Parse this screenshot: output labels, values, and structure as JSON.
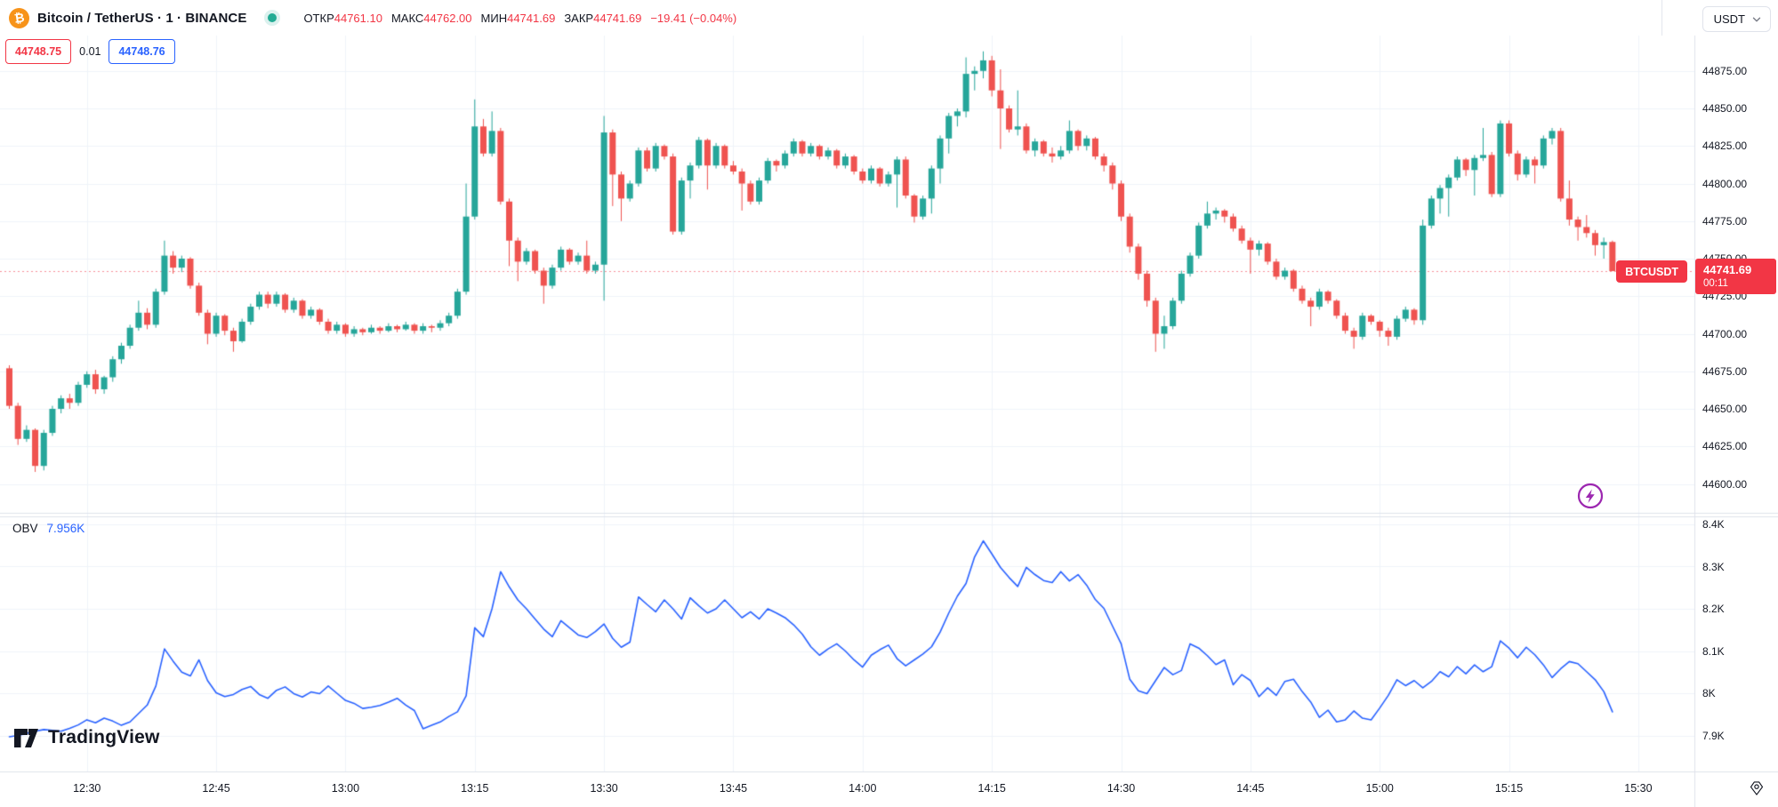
{
  "header": {
    "symbol_title": "Bitcoin / TetherUS · 1 · BINANCE",
    "market_status": "open",
    "ohlc": {
      "open_label": "ОТКР",
      "open": "44761.10",
      "high_label": "МАКС",
      "high": "44762.00",
      "low_label": "МИН",
      "low": "44741.69",
      "close_label": "ЗАКР",
      "close": "44741.69",
      "change": "−19.41 (−0.04%)"
    },
    "currency": "USDT"
  },
  "trade_panel": {
    "sell_price": "44748.75",
    "spread": "0.01",
    "buy_price": "44748.76"
  },
  "price_label": {
    "symbol": "BTCUSDT",
    "price": "44741.69",
    "countdown": "00:11"
  },
  "indicator": {
    "name": "OBV",
    "value": "7.956K"
  },
  "watermark": "TradingView",
  "icons": {
    "bitcoin_glyph": "₿"
  },
  "colors": {
    "up": "#26a69a",
    "down": "#ef5350",
    "accent_red": "#f23645",
    "accent_blue": "#2962ff",
    "obv_line": "#2962ff",
    "bitcoin_orange": "#f7931a",
    "lightning_purple": "#9c27b0",
    "grid": "#f0f3fa",
    "axis_border": "#e0e3eb",
    "text": "#131722",
    "price_line": "rgba(242,54,69,0.55)"
  },
  "chart_data": {
    "type": "candlestick",
    "title": "Bitcoin / TetherUS 1m BINANCE with OBV",
    "legend_position": "top-left",
    "grid": true,
    "last_price": 44741.69,
    "price_axis": {
      "min": 44600,
      "max": 44900,
      "ticks": [
        44875,
        44850,
        44825,
        44800,
        44775,
        44750,
        44725,
        44700,
        44675,
        44650,
        44625,
        44600
      ]
    },
    "time_axis": {
      "labels": [
        "12:30",
        "12:45",
        "13:00",
        "13:15",
        "13:30",
        "13:45",
        "14:00",
        "14:15",
        "14:30",
        "14:45",
        "15:00",
        "15:15",
        "15:30"
      ],
      "first_label_candle_index": 9,
      "candles_per_label": 15
    },
    "candles": [
      [
        44677,
        44679,
        44650,
        44652
      ],
      [
        44652,
        44654,
        44626,
        44630
      ],
      [
        44630,
        44639,
        44628,
        44636
      ],
      [
        44636,
        44637,
        44608,
        44612
      ],
      [
        44612,
        44636,
        44609,
        44634
      ],
      [
        44634,
        44652,
        44632,
        44650
      ],
      [
        44650,
        44659,
        44647,
        44657
      ],
      [
        44657,
        44660,
        44650,
        44654
      ],
      [
        44654,
        44668,
        44652,
        44666
      ],
      [
        44666,
        44675,
        44664,
        44673
      ],
      [
        44673,
        44676,
        44660,
        44663
      ],
      [
        44663,
        44672,
        44660,
        44671
      ],
      [
        44671,
        44685,
        44668,
        44683
      ],
      [
        44683,
        44694,
        44680,
        44692
      ],
      [
        44692,
        44706,
        44690,
        44704
      ],
      [
        44704,
        44722,
        44702,
        44714
      ],
      [
        44714,
        44717,
        44703,
        44706
      ],
      [
        44706,
        44730,
        44704,
        44728
      ],
      [
        44728,
        44762,
        44726,
        44752
      ],
      [
        44752,
        44755,
        44740,
        44744
      ],
      [
        44744,
        44752,
        44741,
        44750
      ],
      [
        44750,
        44751,
        44730,
        44732
      ],
      [
        44732,
        44734,
        44712,
        44714
      ],
      [
        44714,
        44716,
        44693,
        44700
      ],
      [
        44700,
        44714,
        44698,
        44712
      ],
      [
        44712,
        44713,
        44699,
        44702
      ],
      [
        44702,
        44704,
        44688,
        44695
      ],
      [
        44695,
        44710,
        44694,
        44708
      ],
      [
        44708,
        44720,
        44706,
        44718
      ],
      [
        44718,
        44728,
        44716,
        44726
      ],
      [
        44726,
        44728,
        44717,
        44720
      ],
      [
        44720,
        44728,
        44718,
        44726
      ],
      [
        44726,
        44727,
        44714,
        44716
      ],
      [
        44716,
        44724,
        44714,
        44722
      ],
      [
        44722,
        44723,
        44710,
        44712
      ],
      [
        44712,
        44718,
        44710,
        44716
      ],
      [
        44716,
        44717,
        44706,
        44708
      ],
      [
        44708,
        44710,
        44700,
        44702
      ],
      [
        44702,
        44708,
        44700,
        44706
      ],
      [
        44706,
        44707,
        44698,
        44700
      ],
      [
        44700,
        44705,
        44698,
        44703
      ],
      [
        44703,
        44704,
        44699,
        44701
      ],
      [
        44701,
        44706,
        44700,
        44704
      ],
      [
        44704,
        44705,
        44700,
        44702
      ],
      [
        44702,
        44707,
        44701,
        44705
      ],
      [
        44705,
        44706,
        44701,
        44703
      ],
      [
        44703,
        44708,
        44702,
        44706
      ],
      [
        44706,
        44707,
        44700,
        44702
      ],
      [
        44702,
        44707,
        44700,
        44705
      ],
      [
        44705,
        44706,
        44701,
        44704
      ],
      [
        44704,
        44709,
        44702,
        44707
      ],
      [
        44707,
        44714,
        44705,
        44712
      ],
      [
        44712,
        44730,
        44710,
        44728
      ],
      [
        44728,
        44800,
        44726,
        44778
      ],
      [
        44778,
        44856,
        44776,
        44838
      ],
      [
        44838,
        44843,
        44818,
        44820
      ],
      [
        44820,
        44848,
        44818,
        44835
      ],
      [
        44835,
        44837,
        44786,
        44788
      ],
      [
        44788,
        44790,
        44745,
        44762
      ],
      [
        44762,
        44764,
        44735,
        44748
      ],
      [
        44748,
        44757,
        44746,
        44755
      ],
      [
        44755,
        44756,
        44740,
        44742
      ],
      [
        44742,
        44744,
        44720,
        44732
      ],
      [
        44732,
        44746,
        44730,
        44744
      ],
      [
        44744,
        44758,
        44742,
        44756
      ],
      [
        44756,
        44757,
        44746,
        44748
      ],
      [
        44748,
        44754,
        44746,
        44752
      ],
      [
        44752,
        44762,
        44740,
        44742
      ],
      [
        44742,
        44748,
        44740,
        44746
      ],
      [
        44746,
        44845,
        44722,
        44834
      ],
      [
        44834,
        44836,
        44785,
        44806
      ],
      [
        44806,
        44808,
        44775,
        44790
      ],
      [
        44790,
        44802,
        44788,
        44800
      ],
      [
        44800,
        44824,
        44798,
        44822
      ],
      [
        44822,
        44824,
        44808,
        44810
      ],
      [
        44810,
        44827,
        44808,
        44825
      ],
      [
        44825,
        44826,
        44816,
        44818
      ],
      [
        44818,
        44820,
        44766,
        44768
      ],
      [
        44768,
        44804,
        44766,
        44802
      ],
      [
        44802,
        44814,
        44790,
        44812
      ],
      [
        44812,
        44831,
        44810,
        44829
      ],
      [
        44829,
        44830,
        44796,
        44812
      ],
      [
        44812,
        44827,
        44810,
        44825
      ],
      [
        44825,
        44826,
        44810,
        44812
      ],
      [
        44812,
        44815,
        44806,
        44808
      ],
      [
        44808,
        44810,
        44782,
        44800
      ],
      [
        44800,
        44802,
        44786,
        44788
      ],
      [
        44788,
        44804,
        44786,
        44802
      ],
      [
        44802,
        44817,
        44800,
        44815
      ],
      [
        44815,
        44816,
        44808,
        44812
      ],
      [
        44812,
        44822,
        44810,
        44820
      ],
      [
        44820,
        44830,
        44818,
        44828
      ],
      [
        44828,
        44829,
        44818,
        44820
      ],
      [
        44820,
        44827,
        44818,
        44825
      ],
      [
        44825,
        44826,
        44816,
        44818
      ],
      [
        44818,
        44824,
        44816,
        44822
      ],
      [
        44822,
        44823,
        44810,
        44812
      ],
      [
        44812,
        44820,
        44810,
        44818
      ],
      [
        44818,
        44819,
        44806,
        44808
      ],
      [
        44808,
        44810,
        44800,
        44802
      ],
      [
        44802,
        44812,
        44800,
        44810
      ],
      [
        44810,
        44811,
        44798,
        44800
      ],
      [
        44800,
        44808,
        44798,
        44806
      ],
      [
        44806,
        44818,
        44784,
        44816
      ],
      [
        44816,
        44818,
        44790,
        44792
      ],
      [
        44792,
        44793,
        44774,
        44778
      ],
      [
        44778,
        44792,
        44776,
        44790
      ],
      [
        44790,
        44812,
        44780,
        44810
      ],
      [
        44810,
        44832,
        44800,
        44830
      ],
      [
        44830,
        44847,
        44820,
        44845
      ],
      [
        44845,
        44850,
        44838,
        44848
      ],
      [
        44848,
        44884,
        44844,
        44873
      ],
      [
        44873,
        44878,
        44862,
        44875
      ],
      [
        44875,
        44888,
        44870,
        44882
      ],
      [
        44882,
        44885,
        44858,
        44862
      ],
      [
        44862,
        44876,
        44823,
        44850
      ],
      [
        44850,
        44852,
        44834,
        44836
      ],
      [
        44836,
        44862,
        44832,
        44838
      ],
      [
        44838,
        44840,
        44820,
        44822
      ],
      [
        44822,
        44830,
        44818,
        44828
      ],
      [
        44828,
        44829,
        44818,
        44820
      ],
      [
        44820,
        44824,
        44814,
        44818
      ],
      [
        44818,
        44825,
        44816,
        44822
      ],
      [
        44822,
        44842,
        44820,
        44835
      ],
      [
        44835,
        44836,
        44822,
        44825
      ],
      [
        44825,
        44832,
        44822,
        44830
      ],
      [
        44830,
        44831,
        44816,
        44818
      ],
      [
        44818,
        44820,
        44808,
        44812
      ],
      [
        44812,
        44814,
        44796,
        44800
      ],
      [
        44800,
        44802,
        44775,
        44778
      ],
      [
        44778,
        44780,
        44754,
        44758
      ],
      [
        44758,
        44760,
        44736,
        44740
      ],
      [
        44740,
        44742,
        44718,
        44722
      ],
      [
        44722,
        44724,
        44688,
        44700
      ],
      [
        44700,
        44712,
        44690,
        44705
      ],
      [
        44705,
        44724,
        44703,
        44722
      ],
      [
        44722,
        44742,
        44720,
        44740
      ],
      [
        44740,
        44754,
        44738,
        44752
      ],
      [
        44752,
        44774,
        44750,
        44772
      ],
      [
        44772,
        44788,
        44770,
        44780
      ],
      [
        44780,
        44784,
        44776,
        44782
      ],
      [
        44782,
        44783,
        44774,
        44778
      ],
      [
        44778,
        44780,
        44768,
        44770
      ],
      [
        44770,
        44772,
        44760,
        44762
      ],
      [
        44762,
        44764,
        44740,
        44756
      ],
      [
        44756,
        44762,
        44752,
        44760
      ],
      [
        44760,
        44761,
        44746,
        44748
      ],
      [
        44748,
        44750,
        44736,
        44738
      ],
      [
        44738,
        44744,
        44736,
        44742
      ],
      [
        44742,
        44743,
        44728,
        44730
      ],
      [
        44730,
        44732,
        44720,
        44722
      ],
      [
        44722,
        44724,
        44705,
        44718
      ],
      [
        44718,
        44730,
        44716,
        44728
      ],
      [
        44728,
        44729,
        44720,
        44722
      ],
      [
        44722,
        44723,
        44710,
        44712
      ],
      [
        44712,
        44714,
        44700,
        44702
      ],
      [
        44702,
        44704,
        44690,
        44698
      ],
      [
        44698,
        44714,
        44696,
        44712
      ],
      [
        44712,
        44713,
        44706,
        44708
      ],
      [
        44708,
        44709,
        44698,
        44702
      ],
      [
        44702,
        44704,
        44692,
        44698
      ],
      [
        44698,
        44712,
        44696,
        44710
      ],
      [
        44710,
        44718,
        44708,
        44716
      ],
      [
        44716,
        44717,
        44706,
        44709
      ],
      [
        44709,
        44776,
        44706,
        44772
      ],
      [
        44772,
        44792,
        44770,
        44790
      ],
      [
        44790,
        44799,
        44780,
        44797
      ],
      [
        44797,
        44806,
        44778,
        44804
      ],
      [
        44804,
        44818,
        44802,
        44816
      ],
      [
        44816,
        44817,
        44805,
        44809
      ],
      [
        44809,
        44819,
        44792,
        44817
      ],
      [
        44817,
        44837,
        44815,
        44819
      ],
      [
        44819,
        44821,
        44791,
        44793
      ],
      [
        44793,
        44842,
        44791,
        44840
      ],
      [
        44840,
        44842,
        44818,
        44820
      ],
      [
        44820,
        44822,
        44802,
        44806
      ],
      [
        44806,
        44818,
        44804,
        44816
      ],
      [
        44816,
        44818,
        44800,
        44812
      ],
      [
        44812,
        44832,
        44810,
        44830
      ],
      [
        44830,
        44837,
        44826,
        44835
      ],
      [
        44835,
        44837,
        44788,
        44790
      ],
      [
        44790,
        44802,
        44772,
        44776
      ],
      [
        44776,
        44778,
        44762,
        44771
      ],
      [
        44771,
        44779,
        44764,
        44767
      ],
      [
        44767,
        44769,
        44752,
        44759
      ],
      [
        44759,
        44764,
        44750,
        44761
      ],
      [
        44761.1,
        44762,
        44741.69,
        44741.69
      ]
    ],
    "obv": {
      "name": "OBV",
      "last_value": 7.956,
      "ticks": [
        "8.4K",
        "8.3K",
        "8.2K",
        "8.1K",
        "8K",
        "7.9K"
      ],
      "tick_values": [
        8.4,
        8.3,
        8.2,
        8.1,
        8.0,
        7.9
      ],
      "values": [
        7.897,
        7.9,
        7.905,
        7.91,
        7.914,
        7.912,
        7.91,
        7.917,
        7.925,
        7.937,
        7.93,
        7.941,
        7.934,
        7.924,
        7.932,
        7.952,
        7.972,
        8.017,
        8.105,
        8.076,
        8.05,
        8.041,
        8.079,
        8.03,
        8.001,
        7.992,
        7.997,
        8.009,
        8.016,
        7.997,
        7.988,
        8.007,
        8.015,
        7.999,
        7.991,
        8.003,
        7.999,
        8.017,
        8.0,
        7.983,
        7.976,
        7.964,
        7.967,
        7.971,
        7.979,
        7.988,
        7.972,
        7.959,
        7.916,
        7.924,
        7.932,
        7.945,
        7.956,
        7.994,
        8.155,
        8.134,
        8.2,
        8.288,
        8.252,
        8.221,
        8.2,
        8.176,
        8.152,
        8.134,
        8.172,
        8.155,
        8.138,
        8.132,
        8.146,
        8.164,
        8.13,
        8.109,
        8.121,
        8.228,
        8.21,
        8.193,
        8.221,
        8.2,
        8.176,
        8.226,
        8.207,
        8.19,
        8.2,
        8.221,
        8.2,
        8.179,
        8.193,
        8.176,
        8.2,
        8.19,
        8.179,
        8.162,
        8.14,
        8.11,
        8.09,
        8.105,
        8.117,
        8.1,
        8.079,
        8.062,
        8.09,
        8.103,
        8.114,
        8.082,
        8.065,
        8.079,
        8.093,
        8.11,
        8.145,
        8.19,
        8.23,
        8.26,
        8.323,
        8.361,
        8.33,
        8.298,
        8.274,
        8.253,
        8.298,
        8.281,
        8.267,
        8.262,
        8.288,
        8.266,
        8.281,
        8.256,
        8.222,
        8.201,
        8.159,
        8.117,
        8.033,
        8.006,
        7.999,
        8.03,
        8.061,
        8.044,
        8.054,
        8.117,
        8.107,
        8.089,
        8.068,
        8.079,
        8.02,
        8.044,
        8.03,
        7.992,
        8.013,
        7.995,
        8.028,
        8.033,
        8.004,
        7.979,
        7.943,
        7.96,
        7.932,
        7.937,
        7.958,
        7.941,
        7.937,
        7.965,
        7.995,
        8.032,
        8.018,
        8.03,
        8.013,
        8.028,
        8.051,
        8.039,
        8.063,
        8.046,
        8.067,
        8.051,
        8.063,
        8.124,
        8.107,
        8.084,
        8.109,
        8.091,
        8.067,
        8.037,
        8.058,
        8.075,
        8.07,
        8.051,
        8.032,
        8.004,
        7.956
      ]
    }
  }
}
